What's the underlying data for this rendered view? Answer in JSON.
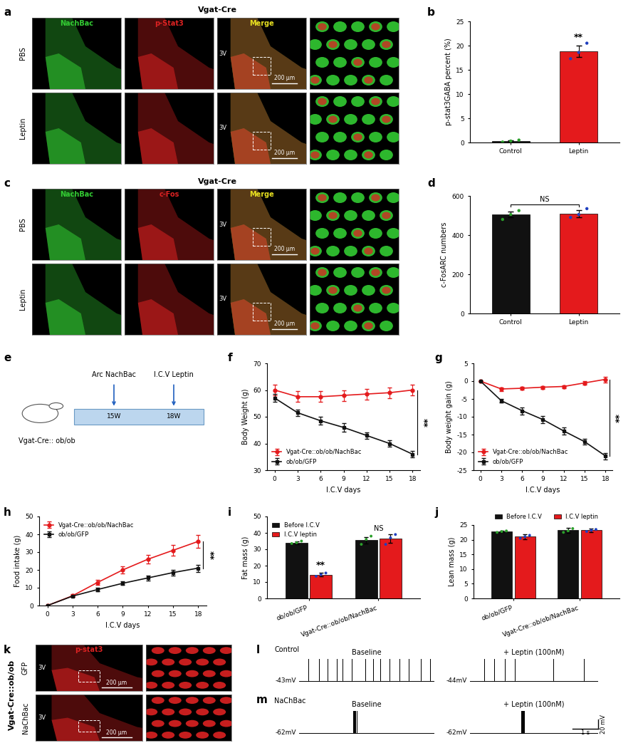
{
  "chart_data": [
    {
      "panel": "b",
      "type": "bar",
      "categories": [
        "Control",
        "Leptin"
      ],
      "values": [
        0.3,
        18.8
      ],
      "errors": [
        0.1,
        1.2
      ],
      "points": [
        [
          0.1,
          0.3,
          0.5
        ],
        [
          17.3,
          18.6,
          20.5
        ]
      ],
      "colors": [
        "#222222",
        "#e41a1c"
      ],
      "ylabel": "p-stat3GABA percent (%)",
      "ylim": [
        0,
        25
      ],
      "yticks": [
        0,
        5,
        10,
        15,
        20,
        25
      ],
      "annotations": [
        {
          "text": "**",
          "category": "Leptin"
        }
      ]
    },
    {
      "panel": "d",
      "type": "bar",
      "categories": [
        "Control",
        "Leptin"
      ],
      "values": [
        505,
        510
      ],
      "errors": [
        15,
        18
      ],
      "points": [
        [
          480,
          505,
          525
        ],
        [
          490,
          505,
          535
        ]
      ],
      "colors": [
        "#111111",
        "#e41a1c"
      ],
      "ylabel": "c-FosARC numbers",
      "ylim": [
        0,
        600
      ],
      "yticks": [
        0,
        200,
        400,
        600
      ],
      "annotations": [
        {
          "text": "NS",
          "span": [
            "Control",
            "Leptin"
          ]
        }
      ]
    },
    {
      "panel": "f",
      "type": "line",
      "x": [
        0,
        3,
        6,
        9,
        12,
        15,
        18
      ],
      "xlim": [
        -1,
        19
      ],
      "xticks": [
        0,
        3,
        6,
        9,
        12,
        15,
        18
      ],
      "ylim": [
        30,
        70
      ],
      "yticks": [
        30,
        40,
        50,
        60,
        70
      ],
      "xlabel": "I.C.V days",
      "ylabel": "Body Weight (g)",
      "legend": "lower left",
      "series": [
        {
          "name": "Vgat-Cre::ob/ob/NachBac",
          "color": "#e41a1c",
          "marker": "circle",
          "values": [
            60,
            57.5,
            57.5,
            58,
            58.5,
            59,
            60
          ],
          "errors": [
            2,
            2,
            2,
            2,
            2,
            2,
            2
          ]
        },
        {
          "name": "ob/ob/GFP",
          "color": "#111111",
          "marker": "square",
          "values": [
            57,
            51.5,
            48.5,
            46,
            43,
            40,
            36
          ],
          "errors": [
            1.5,
            1.2,
            1.5,
            1.5,
            1.2,
            1.2,
            1.2
          ]
        }
      ],
      "annotations": [
        {
          "text": "**"
        }
      ]
    },
    {
      "panel": "g",
      "type": "line",
      "x": [
        0,
        3,
        6,
        9,
        12,
        15,
        18
      ],
      "xlim": [
        -1,
        19
      ],
      "xticks": [
        0,
        3,
        6,
        9,
        12,
        15,
        18
      ],
      "ylim": [
        -25,
        5
      ],
      "yticks": [
        -25,
        -20,
        -15,
        -10,
        -5,
        0,
        5
      ],
      "xlabel": "I.C.V days",
      "ylabel": "Body weight gain (g)",
      "legend": "lower left",
      "series": [
        {
          "name": "Vgat-Cre::ob/ob/NachBac",
          "color": "#e41a1c",
          "marker": "circle",
          "values": [
            0,
            -2.2,
            -2,
            -1.7,
            -1.5,
            -0.5,
            0.5
          ],
          "errors": [
            0,
            0.5,
            0.4,
            0.4,
            0.4,
            0.5,
            0.8
          ]
        },
        {
          "name": "ob/ob/GFP",
          "color": "#111111",
          "marker": "square",
          "values": [
            0,
            -5.5,
            -8.3,
            -10.8,
            -14,
            -17,
            -21
          ],
          "errors": [
            0,
            0.5,
            1,
            1,
            1,
            0.8,
            0.9
          ]
        }
      ],
      "annotations": [
        {
          "text": "**"
        }
      ]
    },
    {
      "panel": "h",
      "type": "line",
      "x": [
        0,
        3,
        6,
        9,
        12,
        15,
        18
      ],
      "xlim": [
        -1,
        19
      ],
      "xticks": [
        0,
        3,
        6,
        9,
        12,
        15,
        18
      ],
      "ylim": [
        0,
        50
      ],
      "yticks": [
        0,
        10,
        20,
        30,
        40,
        50
      ],
      "xlabel": "I.C.V days",
      "ylabel": "Food intake (g)",
      "legend": "upper left",
      "series": [
        {
          "name": "Vgat-Cre::ob/ob/NachBac",
          "color": "#e41a1c",
          "marker": "circle",
          "values": [
            0,
            5.5,
            13,
            20,
            26,
            31,
            36
          ],
          "errors": [
            0,
            0.8,
            1.5,
            2,
            2.5,
            3,
            3.5
          ]
        },
        {
          "name": "ob/ob/GFP",
          "color": "#111111",
          "marker": "square",
          "values": [
            0,
            5.3,
            9,
            12.5,
            15.5,
            18.5,
            21
          ],
          "errors": [
            0,
            0.5,
            1,
            1,
            1.3,
            1.5,
            2
          ]
        }
      ],
      "annotations": [
        {
          "text": "**"
        }
      ]
    },
    {
      "panel": "i",
      "type": "grouped_bar",
      "categories": [
        "ob/ob/GFP",
        "Vgat-Cre::ob/ob/NachBac"
      ],
      "series": [
        {
          "name": "Before I.C.V",
          "color": "#111111",
          "values": [
            34,
            35.5
          ],
          "errors": [
            1,
            2
          ],
          "points": [
            [
              33.5,
              34,
              35
            ],
            [
              33,
              36,
              38
            ]
          ]
        },
        {
          "name": "I.C.V leptin",
          "color": "#e41a1c",
          "values": [
            14.5,
            36.5
          ],
          "errors": [
            1.2,
            2.5
          ],
          "points": [
            [
              13.5,
              14.5,
              15.5
            ],
            [
              33,
              37,
              39
            ]
          ]
        }
      ],
      "ylabel": "Fat mass (g)",
      "ylim": [
        0,
        50
      ],
      "yticks": [
        0,
        10,
        20,
        30,
        40,
        50
      ],
      "legend": "upper left",
      "annotations": [
        {
          "text": "**",
          "category": "ob/ob/GFP",
          "series": "I.C.V leptin"
        },
        {
          "text": "NS",
          "category": "Vgat-Cre::ob/ob/NachBac"
        }
      ]
    },
    {
      "panel": "j",
      "type": "grouped_bar",
      "categories": [
        "ob/ob/GFP",
        "Vgat-Cre::ob/ob/NachBac"
      ],
      "series": [
        {
          "name": "Before I.C.V",
          "color": "#111111",
          "values": [
            22.8,
            23.2
          ],
          "errors": [
            0.3,
            0.8
          ],
          "points": [
            [
              22.5,
              22.8,
              23
            ],
            [
              22.5,
              23,
              23.8
            ]
          ]
        },
        {
          "name": "I.C.V leptin",
          "color": "#e41a1c",
          "values": [
            21,
            23.2
          ],
          "errors": [
            0.8,
            0.6
          ],
          "points": [
            [
              20.5,
              21,
              21.5
            ],
            [
              22.8,
              23.2,
              23.5
            ]
          ]
        }
      ],
      "ylabel": "Lean mass (g)",
      "ylim": [
        0,
        25
      ],
      "yticks": [
        0,
        5,
        10,
        15,
        20,
        25
      ],
      "legend": "top"
    }
  ],
  "image_panels": [
    {
      "panel": "a",
      "title": "Vgat-Cre",
      "rows": [
        "PBS",
        "Leptin"
      ],
      "columns": [
        "NachBac",
        "p-Stat3",
        "Merge"
      ],
      "column_colors": [
        "#33cc33",
        "#dd2222",
        "#e8e020"
      ],
      "landmark": "3V",
      "scale_bar": "200 μm"
    },
    {
      "panel": "c",
      "title": "Vgat-Cre",
      "rows": [
        "PBS",
        "Leptin"
      ],
      "columns": [
        "NachBac",
        "c-Fos",
        "Merge"
      ],
      "column_colors": [
        "#33cc33",
        "#dd2222",
        "#e8e020"
      ],
      "landmark": "3V",
      "scale_bar": "200 μm"
    },
    {
      "panel": "k",
      "title": "Vgat-Cre::ob/ob",
      "rows": [
        "GFP",
        "NaChBac"
      ],
      "columns": [
        "p-stat3"
      ],
      "column_colors": [
        "#dd2222"
      ],
      "landmark": "3V",
      "scale_bar": "200 μm"
    }
  ],
  "schematic": {
    "panel": "e",
    "subject": "Vgat-Cre:: ob/ob",
    "events": [
      {
        "label": "Arc NachBac",
        "week": "15W"
      },
      {
        "label": "I.C.V Leptin",
        "week": "18W"
      }
    ]
  },
  "recordings": {
    "duration_s": 5,
    "spike_amplitude_mV": 50,
    "panels": [
      {
        "panel": "l",
        "name": "Control",
        "conditions": [
          {
            "title": "Baseline",
            "vm": -43,
            "vm_label": "-43mV",
            "spike_times": [
              0.35,
              0.75,
              1.05,
              1.4,
              1.6,
              1.95,
              2.45,
              2.75,
              3.0,
              3.35,
              3.7,
              4.05,
              4.5,
              4.85
            ]
          },
          {
            "title": "+ Leptin (100nM)",
            "vm": -44,
            "vm_label": "-44mV",
            "spike_times": [
              0.55,
              0.95,
              1.35,
              1.75,
              3.25,
              4.45
            ]
          }
        ]
      },
      {
        "panel": "m",
        "name": "NaChBac",
        "conditions": [
          {
            "title": "Baseline",
            "vm": -62,
            "vm_label": "-62mV",
            "spike_times": [
              2.0,
              2.03,
              2.06,
              2.09,
              2.12
            ]
          },
          {
            "title": "+ Leptin (100nM)",
            "vm": -62,
            "vm_label": "-62mV",
            "spike_times": [
              2.0,
              2.03,
              2.06,
              2.09,
              2.12
            ]
          }
        ],
        "scale_bar": {
          "mV": 20,
          "s": 1,
          "mV_label": "20 mV",
          "s_label": "1 s"
        }
      }
    ]
  }
}
